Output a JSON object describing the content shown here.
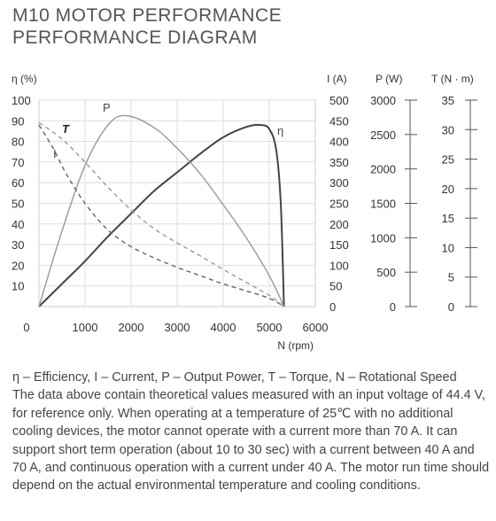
{
  "header": {
    "title_line1": "M10 MOTOR PERFORMANCE",
    "title_line2": "PERFORMANCE DIAGRAM"
  },
  "chart_data": {
    "type": "line",
    "x_axis": {
      "label": "N (rpm)",
      "range": [
        0,
        6000
      ],
      "ticks": [
        0,
        1000,
        2000,
        3000,
        4000,
        5000,
        6000
      ]
    },
    "axes": {
      "eta": {
        "label": "η (%)",
        "range": [
          0,
          100
        ],
        "ticks": [
          10,
          20,
          30,
          40,
          50,
          60,
          70,
          80,
          90,
          100
        ]
      },
      "I": {
        "label": "I (A)",
        "range": [
          0,
          500
        ],
        "ticks": [
          0,
          50,
          100,
          150,
          200,
          250,
          300,
          350,
          400,
          450,
          500
        ]
      },
      "P": {
        "label": "P (W)",
        "range": [
          0,
          3000
        ],
        "ticks": [
          0,
          500,
          1000,
          1500,
          2000,
          2500,
          3000
        ]
      },
      "T": {
        "label": "T (N · m)",
        "range": [
          0,
          35
        ],
        "ticks": [
          0,
          5,
          10,
          15,
          20,
          25,
          30,
          35
        ]
      }
    },
    "grid": true,
    "series": [
      {
        "name": "η",
        "axis": "eta",
        "style": "solid",
        "color": "#444444",
        "x": [
          0,
          500,
          1000,
          1500,
          2000,
          2500,
          3000,
          3500,
          4000,
          4500,
          4800,
          5000,
          5150,
          5250,
          5320
        ],
        "y": [
          0,
          11,
          22,
          34,
          45,
          56,
          65,
          74,
          82,
          87,
          88,
          86,
          76,
          50,
          0
        ]
      },
      {
        "name": "P",
        "axis": "P",
        "style": "solid",
        "color": "#999999",
        "x": [
          0,
          500,
          1000,
          1500,
          1900,
          2500,
          3000,
          3500,
          4000,
          4500,
          5000,
          5320
        ],
        "y": [
          0,
          1100,
          2050,
          2640,
          2775,
          2600,
          2300,
          1930,
          1480,
          1000,
          450,
          0
        ]
      },
      {
        "name": "I",
        "axis": "I",
        "style": "dashed",
        "color": "#666666",
        "x": [
          0,
          300,
          600,
          1000,
          1500,
          2000,
          2500,
          3000,
          3500,
          4000,
          4500,
          5000,
          5320
        ],
        "y": [
          440,
          385,
          320,
          250,
          185,
          145,
          118,
          95,
          75,
          55,
          38,
          20,
          0
        ]
      },
      {
        "name": "T",
        "axis": "T",
        "style": "dashed",
        "color": "#999999",
        "x": [
          0,
          500,
          1000,
          1500,
          2000,
          2500,
          3000,
          3500,
          4000,
          4500,
          5000,
          5320
        ],
        "y": [
          31.2,
          28.4,
          24.5,
          20.2,
          16.4,
          13.2,
          10.8,
          8.6,
          6.3,
          4.1,
          1.9,
          0
        ]
      }
    ],
    "curve_labels": [
      {
        "text": "P",
        "color": "#444444",
        "italic": false,
        "bold": false
      },
      {
        "text": "η",
        "color": "#444444",
        "italic": false,
        "bold": false
      },
      {
        "text": "T",
        "color": "#222222",
        "italic": true,
        "bold": true
      },
      {
        "text": "I",
        "color": "#444444",
        "italic": false,
        "bold": false
      }
    ]
  },
  "caption": {
    "legend_line": "η – Efficiency, I – Current, P – Output Power, T – Torque, N – Rotational Speed",
    "body": "The data above contain theoretical values measured with an input voltage of 44.4 V, for reference only. When operating at a temperature of 25℃ with no additional cooling devices, the motor cannot operate with a current more than 70 A. It can support short term operation (about 10 to 30 sec) with a current between 40 A and 70 A, and continuous operation with a current under 40 A. The motor run time should depend on the actual environmental temperature and cooling conditions."
  }
}
